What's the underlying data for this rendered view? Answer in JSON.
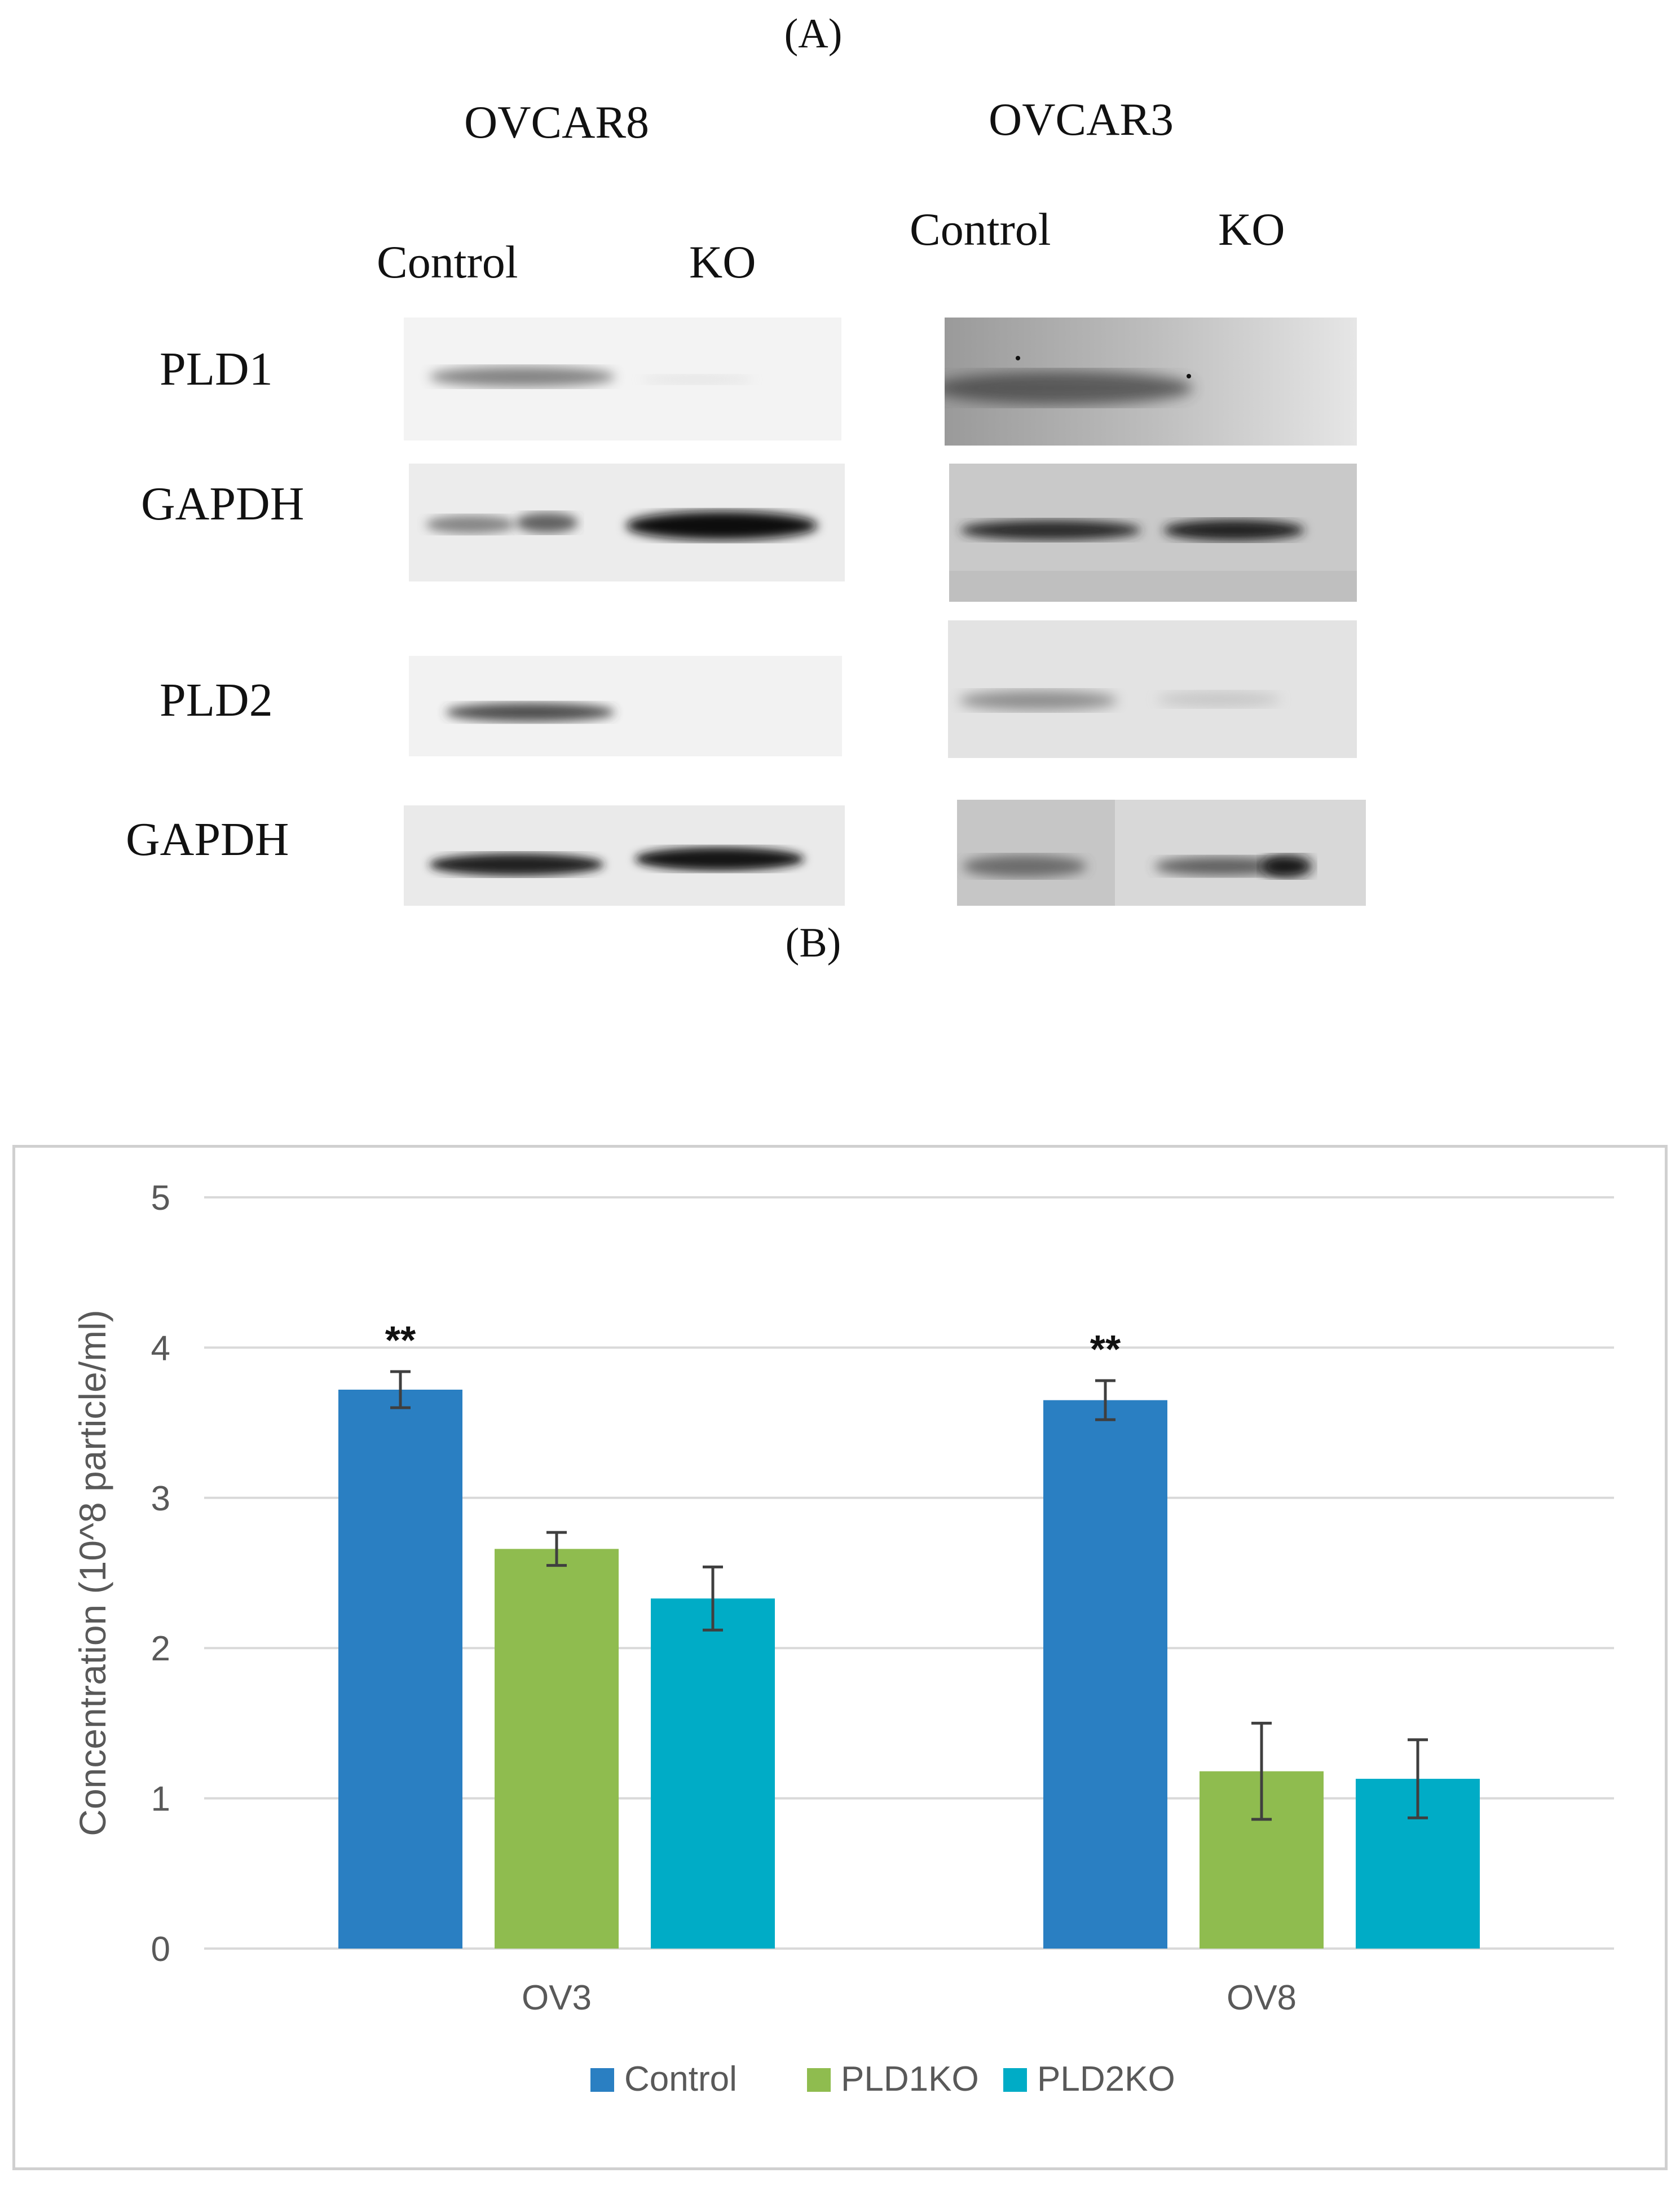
{
  "figure": {
    "panel_a_label": "(A)",
    "panel_b_label": "(B)",
    "cell_lines": [
      {
        "name": "OVCAR8",
        "lanes": [
          "Control",
          "KO"
        ]
      },
      {
        "name": "OVCAR3",
        "lanes": [
          "Control",
          "KO"
        ]
      }
    ],
    "blot_rows": [
      "PLD1",
      "GAPDH",
      "PLD2",
      "GAPDH"
    ],
    "blot_background": "#f2f2f2",
    "band_color": "#222222"
  },
  "chart_data": {
    "type": "bar",
    "title": "",
    "xlabel": "",
    "ylabel": "Concentration (10^8 particle/ml)",
    "ylim": [
      0,
      5
    ],
    "yticks": [
      "0",
      "1",
      "2",
      "3",
      "4",
      "5"
    ],
    "categories": [
      "OV3",
      "OV8"
    ],
    "series": [
      {
        "name": "Control",
        "color": "#2a7fc2",
        "values": [
          3.72,
          3.65
        ],
        "errors": [
          0.12,
          0.13
        ]
      },
      {
        "name": "PLD1KO",
        "color": "#8fbc4f",
        "values": [
          2.66,
          1.18
        ],
        "errors": [
          0.11,
          0.32
        ]
      },
      {
        "name": "PLD2KO",
        "color": "#00acc6",
        "values": [
          2.33,
          1.13
        ],
        "errors": [
          0.21,
          0.26
        ]
      }
    ],
    "annotations": [
      {
        "category": "OV3",
        "series": "Control",
        "text": "**"
      },
      {
        "category": "OV8",
        "series": "Control",
        "text": "**"
      }
    ],
    "grid": true,
    "legend_position": "bottom"
  }
}
